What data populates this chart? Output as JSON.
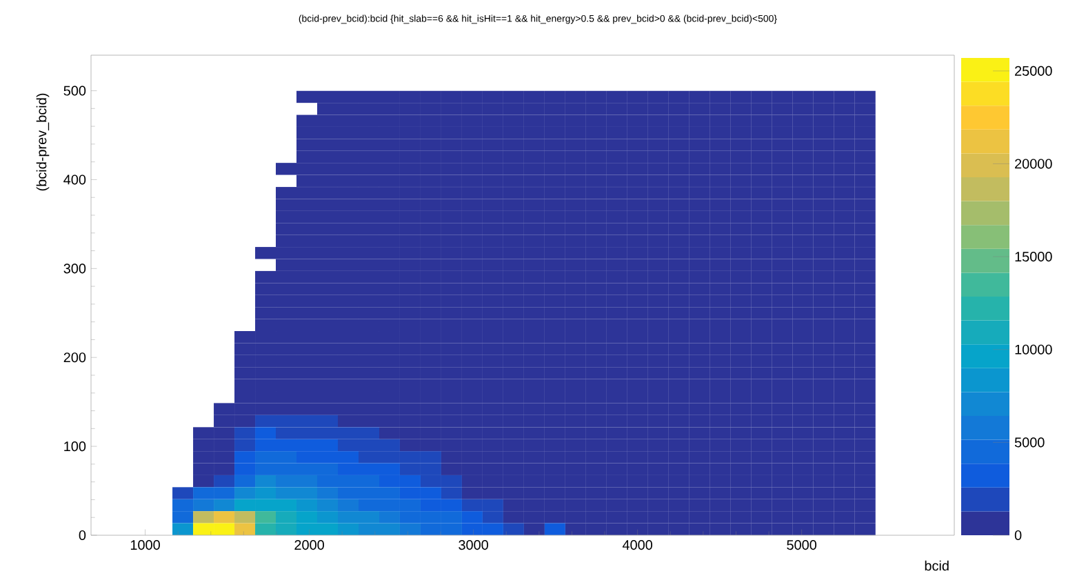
{
  "chart_data": {
    "type": "heatmap",
    "title": "(bcid-prev_bcid):bcid {hit_slab==6 && hit_isHit==1 && hit_energy>0.5 && prev_bcid>0 && (bcid-prev_bcid)<500}",
    "xlabel": "bcid",
    "ylabel": "(bcid-prev_bcid)",
    "x": [
      1229,
      1355,
      1481,
      1607,
      1733,
      1859,
      1985,
      2111,
      2237,
      2363,
      2489,
      2615,
      2741,
      2867,
      2993,
      3119,
      3245,
      3371,
      3497,
      3623,
      3749,
      3875,
      4001,
      4127,
      4253,
      4379,
      4505,
      4631,
      4757,
      4883,
      5009,
      5135,
      5261,
      5387
    ],
    "y": [
      493.1,
      479.6,
      466.1,
      452.6,
      439.1,
      425.6,
      412.1,
      398.6,
      385.0,
      371.5,
      358.0,
      344.5,
      331.0,
      317.5,
      304.0,
      290.5,
      276.96,
      263.5,
      249.9,
      236.4,
      222.9,
      209.4,
      195.9,
      182.4,
      168.9,
      155.4,
      141.9,
      128.4,
      114.8,
      101.3,
      87.8,
      74.3,
      60.8,
      47.3,
      33.8,
      20.3,
      6.8
    ],
    "cells": [
      [
        null,
        null,
        null,
        null,
        null,
        null,
        600,
        600,
        600,
        600,
        600,
        600,
        600,
        600,
        600,
        600,
        600,
        600,
        600,
        600,
        600,
        600,
        600,
        600,
        600,
        600,
        600,
        600,
        600,
        600,
        600,
        600,
        600,
        600
      ],
      [
        null,
        null,
        null,
        null,
        null,
        null,
        null,
        600,
        600,
        600,
        600,
        600,
        600,
        600,
        600,
        600,
        600,
        600,
        600,
        600,
        600,
        600,
        600,
        600,
        600,
        600,
        600,
        600,
        600,
        600,
        600,
        600,
        600,
        600
      ],
      [
        null,
        null,
        null,
        null,
        null,
        null,
        600,
        600,
        600,
        600,
        600,
        600,
        600,
        600,
        600,
        600,
        600,
        600,
        600,
        600,
        600,
        600,
        600,
        600,
        600,
        600,
        600,
        600,
        600,
        600,
        600,
        600,
        600,
        600
      ],
      [
        null,
        null,
        null,
        null,
        null,
        null,
        600,
        600,
        600,
        600,
        600,
        600,
        600,
        600,
        600,
        600,
        600,
        600,
        600,
        600,
        600,
        600,
        600,
        600,
        600,
        600,
        600,
        600,
        600,
        600,
        600,
        600,
        600,
        600
      ],
      [
        null,
        null,
        null,
        null,
        null,
        null,
        600,
        600,
        600,
        600,
        600,
        600,
        600,
        600,
        600,
        600,
        600,
        600,
        600,
        600,
        600,
        600,
        600,
        600,
        600,
        600,
        600,
        600,
        600,
        600,
        600,
        600,
        600,
        600
      ],
      [
        null,
        null,
        null,
        null,
        null,
        null,
        600,
        600,
        600,
        600,
        600,
        600,
        600,
        600,
        600,
        600,
        600,
        600,
        600,
        600,
        600,
        600,
        600,
        600,
        600,
        600,
        600,
        600,
        600,
        600,
        600,
        600,
        600,
        600
      ],
      [
        null,
        null,
        null,
        null,
        null,
        600,
        600,
        600,
        600,
        600,
        600,
        600,
        600,
        600,
        600,
        600,
        600,
        600,
        600,
        600,
        600,
        600,
        600,
        600,
        600,
        600,
        600,
        600,
        600,
        600,
        600,
        600,
        600,
        600
      ],
      [
        null,
        null,
        null,
        null,
        null,
        null,
        600,
        600,
        600,
        600,
        600,
        600,
        600,
        600,
        600,
        600,
        600,
        600,
        600,
        600,
        600,
        600,
        600,
        600,
        600,
        600,
        600,
        600,
        600,
        600,
        600,
        600,
        600,
        600
      ],
      [
        null,
        null,
        null,
        null,
        null,
        600,
        600,
        600,
        600,
        600,
        600,
        600,
        600,
        600,
        600,
        600,
        600,
        600,
        600,
        600,
        600,
        600,
        600,
        600,
        600,
        600,
        600,
        600,
        600,
        600,
        600,
        600,
        600,
        600
      ],
      [
        null,
        null,
        null,
        null,
        null,
        600,
        600,
        600,
        600,
        600,
        600,
        600,
        600,
        600,
        600,
        600,
        600,
        600,
        600,
        600,
        600,
        600,
        600,
        600,
        600,
        600,
        600,
        600,
        600,
        600,
        600,
        600,
        600,
        600
      ],
      [
        null,
        null,
        null,
        null,
        null,
        600,
        600,
        600,
        600,
        600,
        600,
        600,
        600,
        600,
        600,
        600,
        600,
        600,
        600,
        600,
        600,
        600,
        600,
        600,
        600,
        600,
        600,
        600,
        600,
        600,
        600,
        600,
        600,
        600
      ],
      [
        null,
        null,
        null,
        null,
        null,
        600,
        600,
        600,
        600,
        600,
        600,
        600,
        600,
        600,
        600,
        600,
        600,
        600,
        600,
        600,
        600,
        600,
        600,
        600,
        600,
        600,
        600,
        600,
        600,
        600,
        600,
        600,
        600,
        600
      ],
      [
        null,
        null,
        null,
        null,
        null,
        600,
        600,
        600,
        600,
        600,
        600,
        600,
        600,
        600,
        600,
        600,
        600,
        600,
        600,
        600,
        600,
        600,
        600,
        600,
        600,
        600,
        600,
        600,
        600,
        600,
        600,
        600,
        600,
        600
      ],
      [
        null,
        null,
        null,
        null,
        600,
        600,
        600,
        600,
        600,
        600,
        600,
        600,
        600,
        600,
        600,
        600,
        600,
        600,
        600,
        600,
        600,
        600,
        600,
        600,
        600,
        600,
        600,
        600,
        600,
        600,
        600,
        600,
        600,
        600
      ],
      [
        null,
        null,
        null,
        null,
        null,
        600,
        600,
        600,
        600,
        600,
        600,
        600,
        600,
        600,
        600,
        600,
        600,
        600,
        600,
        600,
        600,
        600,
        600,
        600,
        600,
        600,
        600,
        600,
        600,
        600,
        600,
        600,
        600,
        600
      ],
      [
        null,
        null,
        null,
        null,
        600,
        600,
        600,
        600,
        600,
        600,
        600,
        600,
        600,
        600,
        600,
        600,
        600,
        600,
        600,
        600,
        600,
        600,
        600,
        600,
        600,
        600,
        600,
        600,
        600,
        600,
        600,
        600,
        600,
        600
      ],
      [
        null,
        null,
        null,
        null,
        600,
        600,
        600,
        600,
        600,
        600,
        600,
        600,
        600,
        600,
        600,
        600,
        600,
        600,
        600,
        600,
        600,
        600,
        600,
        600,
        600,
        600,
        600,
        600,
        600,
        600,
        600,
        600,
        600,
        600
      ],
      [
        null,
        null,
        null,
        null,
        600,
        600,
        600,
        600,
        600,
        600,
        600,
        600,
        600,
        600,
        600,
        600,
        600,
        600,
        600,
        600,
        600,
        600,
        600,
        600,
        600,
        600,
        600,
        600,
        600,
        600,
        600,
        600,
        600,
        600
      ],
      [
        null,
        null,
        null,
        null,
        600,
        600,
        600,
        600,
        600,
        600,
        600,
        600,
        600,
        600,
        600,
        600,
        600,
        600,
        600,
        600,
        600,
        600,
        600,
        600,
        600,
        600,
        600,
        600,
        600,
        600,
        600,
        600,
        600,
        600
      ],
      [
        null,
        null,
        null,
        null,
        600,
        600,
        600,
        600,
        600,
        600,
        600,
        600,
        600,
        600,
        600,
        600,
        600,
        600,
        600,
        600,
        600,
        600,
        600,
        600,
        600,
        600,
        600,
        600,
        600,
        600,
        600,
        600,
        600,
        600
      ],
      [
        null,
        null,
        null,
        600,
        600,
        600,
        600,
        600,
        600,
        600,
        600,
        600,
        600,
        600,
        600,
        600,
        600,
        600,
        600,
        600,
        600,
        600,
        600,
        600,
        600,
        600,
        600,
        600,
        600,
        600,
        600,
        600,
        600,
        600
      ],
      [
        null,
        null,
        null,
        600,
        600,
        600,
        600,
        600,
        600,
        600,
        600,
        600,
        600,
        600,
        600,
        600,
        600,
        600,
        600,
        600,
        600,
        600,
        600,
        600,
        600,
        600,
        600,
        600,
        600,
        600,
        600,
        600,
        600,
        600
      ],
      [
        null,
        null,
        null,
        600,
        600,
        600,
        600,
        600,
        600,
        600,
        600,
        600,
        600,
        600,
        600,
        600,
        600,
        600,
        600,
        600,
        600,
        600,
        600,
        600,
        600,
        600,
        600,
        600,
        600,
        600,
        600,
        600,
        600,
        600
      ],
      [
        null,
        null,
        null,
        600,
        600,
        600,
        600,
        600,
        600,
        600,
        600,
        600,
        600,
        600,
        600,
        600,
        600,
        600,
        600,
        600,
        600,
        600,
        600,
        600,
        600,
        600,
        600,
        600,
        600,
        600,
        600,
        600,
        600,
        600
      ],
      [
        null,
        null,
        null,
        600,
        600,
        600,
        600,
        600,
        600,
        600,
        600,
        600,
        600,
        600,
        600,
        600,
        600,
        600,
        600,
        600,
        600,
        600,
        600,
        600,
        600,
        600,
        600,
        600,
        600,
        600,
        600,
        600,
        600,
        600
      ],
      [
        null,
        null,
        null,
        600,
        600,
        600,
        600,
        600,
        600,
        600,
        600,
        600,
        600,
        600,
        600,
        600,
        600,
        600,
        600,
        600,
        600,
        600,
        600,
        600,
        600,
        600,
        600,
        600,
        600,
        600,
        600,
        600,
        600,
        600
      ],
      [
        null,
        null,
        600,
        600,
        600,
        600,
        600,
        600,
        600,
        600,
        600,
        600,
        600,
        600,
        600,
        600,
        600,
        600,
        600,
        600,
        600,
        600,
        600,
        600,
        600,
        600,
        600,
        600,
        600,
        600,
        600,
        600,
        600,
        600
      ],
      [
        null,
        null,
        600,
        600,
        2500,
        2500,
        2000,
        2000,
        600,
        600,
        600,
        600,
        600,
        600,
        600,
        600,
        600,
        600,
        600,
        600,
        600,
        600,
        600,
        600,
        600,
        600,
        600,
        600,
        600,
        600,
        600,
        600,
        600,
        600
      ],
      [
        null,
        600,
        600,
        2000,
        3000,
        2500,
        2500,
        2000,
        1500,
        1500,
        600,
        600,
        600,
        600,
        600,
        600,
        600,
        600,
        600,
        600,
        600,
        600,
        600,
        600,
        600,
        600,
        600,
        600,
        600,
        600,
        600,
        600,
        600,
        600
      ],
      [
        null,
        600,
        600,
        2000,
        3500,
        3500,
        3000,
        3000,
        2500,
        2000,
        1500,
        600,
        600,
        600,
        600,
        600,
        600,
        600,
        600,
        600,
        600,
        600,
        600,
        600,
        600,
        600,
        600,
        600,
        600,
        600,
        600,
        600,
        600,
        600
      ],
      [
        null,
        600,
        600,
        3000,
        4500,
        4000,
        3500,
        3500,
        3000,
        2500,
        2500,
        2000,
        1500,
        600,
        600,
        600,
        600,
        600,
        600,
        600,
        600,
        600,
        600,
        600,
        600,
        600,
        600,
        600,
        600,
        600,
        600,
        600,
        600,
        600
      ],
      [
        null,
        600,
        600,
        3500,
        5000,
        4500,
        4500,
        4000,
        3500,
        3000,
        3000,
        2500,
        2000,
        600,
        600,
        600,
        600,
        600,
        600,
        600,
        600,
        600,
        600,
        600,
        600,
        600,
        600,
        600,
        600,
        600,
        600,
        600,
        600,
        600
      ],
      [
        null,
        600,
        1500,
        4500,
        6500,
        6000,
        5500,
        5000,
        4500,
        4000,
        3500,
        3000,
        2500,
        2000,
        600,
        600,
        600,
        600,
        600,
        600,
        600,
        600,
        600,
        600,
        600,
        600,
        600,
        600,
        600,
        600,
        600,
        600,
        600,
        600
      ],
      [
        1500,
        4500,
        5000,
        6500,
        8000,
        7500,
        7000,
        6000,
        5000,
        4500,
        4000,
        3500,
        3000,
        2000,
        600,
        600,
        600,
        600,
        600,
        600,
        600,
        600,
        600,
        600,
        600,
        600,
        600,
        600,
        600,
        600,
        600,
        600,
        600,
        600
      ],
      [
        4500,
        5500,
        7000,
        9000,
        10000,
        9000,
        8500,
        7000,
        6000,
        5000,
        4500,
        4000,
        3500,
        3000,
        2500,
        2000,
        600,
        600,
        600,
        600,
        600,
        600,
        600,
        600,
        600,
        600,
        600,
        600,
        600,
        600,
        600,
        600,
        600,
        600
      ],
      [
        5000,
        19000,
        21000,
        19000,
        13000,
        11000,
        10000,
        8000,
        7000,
        6500,
        6000,
        5000,
        4500,
        4000,
        3500,
        2500,
        600,
        600,
        600,
        600,
        600,
        600,
        600,
        600,
        600,
        600,
        600,
        600,
        600,
        600,
        600,
        600,
        600,
        600
      ],
      [
        8000,
        24800,
        25700,
        21000,
        12000,
        11000,
        10000,
        9000,
        8000,
        7000,
        6500,
        6000,
        5000,
        4500,
        3500,
        3000,
        2500,
        600,
        3000,
        600,
        600,
        600,
        600,
        600,
        600,
        600,
        600,
        600,
        600,
        600,
        600,
        600,
        600,
        600
      ]
    ],
    "xlim": [
      670,
      5930
    ],
    "ylim": [
      0,
      540
    ],
    "xticks": [
      1000,
      2000,
      3000,
      4000,
      5000
    ],
    "yticks": [
      0,
      100,
      200,
      300,
      400,
      500
    ],
    "clim": [
      0,
      25700
    ],
    "cticks": [
      0,
      5000,
      10000,
      15000,
      20000,
      25000
    ]
  }
}
